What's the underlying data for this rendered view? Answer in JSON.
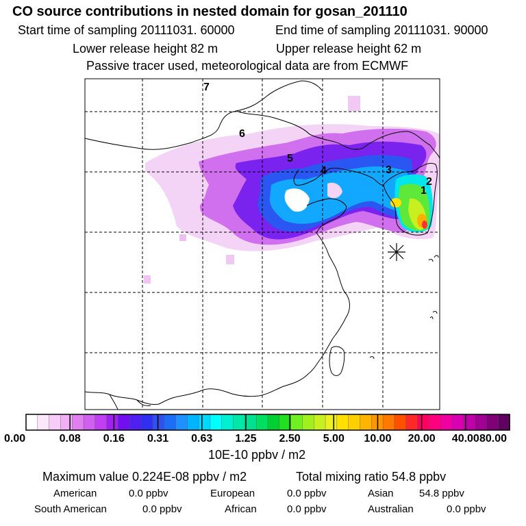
{
  "header": {
    "title": "CO  source contributions in nested domain for gosan_201110",
    "start_time": "Start time of sampling 20111031. 60000",
    "end_time": "End time of sampling 20111031. 90000",
    "lower_release": "Lower release height   82 m",
    "upper_release": "Upper release height   62 m",
    "passive_tracer": "Passive tracer used, meteorological data are from ECMWF"
  },
  "chart_data": {
    "type": "heatmap",
    "title": "CO  source contributions in nested domain for gosan_201110",
    "colorbar": {
      "units": "10E-10 ppbv / m2",
      "tick_labels": [
        "0.00",
        "0.08",
        "0.16",
        "0.31",
        "0.63",
        "1.25",
        "2.50",
        "5.00",
        "10.00",
        "20.00",
        "40.00",
        "80.00"
      ],
      "colors": [
        "#ffffff",
        "#fce6fc",
        "#f8ccf8",
        "#f2b0f4",
        "#e080f0",
        "#d060f0",
        "#c040f0",
        "#a020f0",
        "#7010f0",
        "#5020f0",
        "#3030f0",
        "#3050f0",
        "#1e6ef5",
        "#1e90ff",
        "#00b4ff",
        "#00d8ff",
        "#00ffff",
        "#00f0d0",
        "#00e8a8",
        "#00e090",
        "#00e060",
        "#00d030",
        "#20e020",
        "#70f020",
        "#a0f020",
        "#c8f020",
        "#ecf020",
        "#ffe000",
        "#ffd000",
        "#ffb400",
        "#ff9600",
        "#ff7800",
        "#ff5000",
        "#ff2828",
        "#ff0060",
        "#ff0080",
        "#f000a0",
        "#d800b0",
        "#c000a8",
        "#a00090",
        "#800078",
        "#600060"
      ]
    },
    "source_labels": [
      "1",
      "2",
      "3",
      "4",
      "5",
      "6",
      "7"
    ],
    "receptor_marker": "Gosan",
    "maximum_value": "Maximum value  0.224E-08 ppbv / m2",
    "total_mixing_ratio": "Total mixing ratio       54.8 ppbv",
    "region_contributions": [
      {
        "name": "American",
        "value": "0.0 ppbv"
      },
      {
        "name": "European",
        "value": "0.0 ppbv"
      },
      {
        "name": "Asian",
        "value": "54.8 ppbv"
      },
      {
        "name": "South American",
        "value": "0.0 ppbv"
      },
      {
        "name": "African",
        "value": "0.0 ppbv"
      },
      {
        "name": "Australian",
        "value": "0.0 ppbv"
      }
    ]
  }
}
